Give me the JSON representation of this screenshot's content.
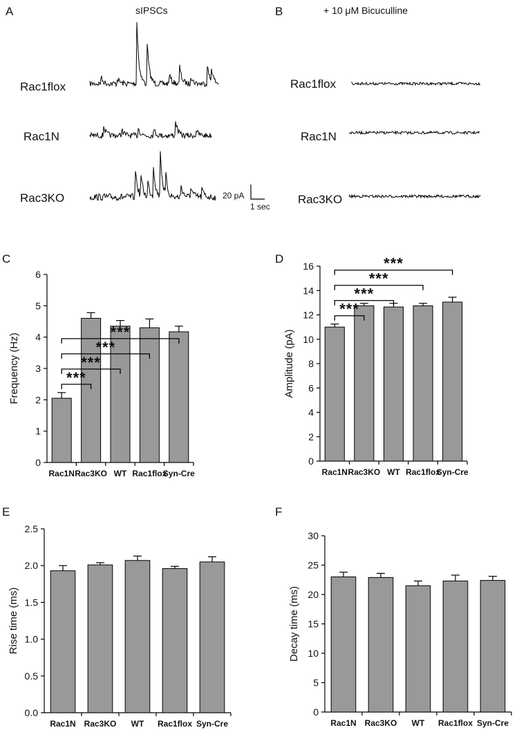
{
  "panels": {
    "A": {
      "letter": "A",
      "title": "sIPSCs",
      "traces": [
        "Rac1flox",
        "Rac1N",
        "Rac3KO"
      ],
      "scale_bar": {
        "current": "20 pA",
        "time": "1 sec"
      }
    },
    "B": {
      "letter": "B",
      "title": "+ 10 μM Bicuculline",
      "traces": [
        "Rac1flox",
        "Rac1N",
        "Rac3KO"
      ]
    },
    "C": {
      "letter": "C"
    },
    "D": {
      "letter": "D"
    },
    "E": {
      "letter": "E"
    },
    "F": {
      "letter": "F"
    }
  },
  "colors": {
    "bar": "#999999",
    "trace": "#000000",
    "axis": "#000000"
  },
  "chart_data": [
    {
      "id": "C",
      "type": "bar",
      "categories": [
        "Rac1N",
        "Rac3KO",
        "WT",
        "Rac1flox",
        "Syn-Cre"
      ],
      "values": [
        2.05,
        4.6,
        4.35,
        4.3,
        4.17
      ],
      "errors": [
        0.18,
        0.18,
        0.18,
        0.28,
        0.18
      ],
      "ylabel": "Frequency (Hz)",
      "ylim": [
        0,
        6
      ],
      "yticks": [
        "0",
        "1",
        "2",
        "3",
        "4",
        "5",
        "6"
      ],
      "significance": [
        {
          "from": "Rac1N",
          "to": "Rac3KO",
          "label": "***"
        },
        {
          "from": "Rac1N",
          "to": "WT",
          "label": "***"
        },
        {
          "from": "Rac1N",
          "to": "Rac1flox",
          "label": "***"
        },
        {
          "from": "Rac1N",
          "to": "Syn-Cre",
          "label": "***"
        }
      ]
    },
    {
      "id": "D",
      "type": "bar",
      "categories": [
        "Rac1N",
        "Rac3KO",
        "WT",
        "Rac1flox",
        "Syn-Cre"
      ],
      "values": [
        11.0,
        12.75,
        12.65,
        12.75,
        13.05
      ],
      "errors": [
        0.25,
        0.2,
        0.3,
        0.2,
        0.4
      ],
      "ylabel": "Amplitude (pA)",
      "ylim": [
        0,
        16
      ],
      "yticks": [
        "0",
        "2",
        "4",
        "6",
        "8",
        "10",
        "12",
        "14",
        "16"
      ],
      "significance": [
        {
          "from": "Rac1N",
          "to": "Rac3KO",
          "label": "***"
        },
        {
          "from": "Rac1N",
          "to": "WT",
          "label": "***"
        },
        {
          "from": "Rac1N",
          "to": "Rac1flox",
          "label": "***"
        },
        {
          "from": "Rac1N",
          "to": "Syn-Cre",
          "label": "***"
        }
      ]
    },
    {
      "id": "E",
      "type": "bar",
      "categories": [
        "Rac1N",
        "Rac3KO",
        "WT",
        "Rac1flox",
        "Syn-Cre"
      ],
      "values": [
        1.93,
        2.01,
        2.07,
        1.96,
        2.05
      ],
      "errors": [
        0.07,
        0.03,
        0.06,
        0.03,
        0.07
      ],
      "ylabel": "Rise time (ms)",
      "ylim": [
        0,
        2.5
      ],
      "yticks": [
        "0.0",
        "0.5",
        "1.0",
        "1.5",
        "2.0",
        "2.5"
      ],
      "significance": []
    },
    {
      "id": "F",
      "type": "bar",
      "categories": [
        "Rac1N",
        "Rac3KO",
        "WT",
        "Rac1flox",
        "Syn-Cre"
      ],
      "values": [
        23.0,
        22.9,
        21.5,
        22.3,
        22.4
      ],
      "errors": [
        0.8,
        0.7,
        0.8,
        1.0,
        0.7
      ],
      "ylabel": "Decay time (ms)",
      "ylim": [
        0,
        30
      ],
      "yticks": [
        "0",
        "5",
        "10",
        "15",
        "20",
        "25",
        "30"
      ],
      "significance": []
    }
  ]
}
